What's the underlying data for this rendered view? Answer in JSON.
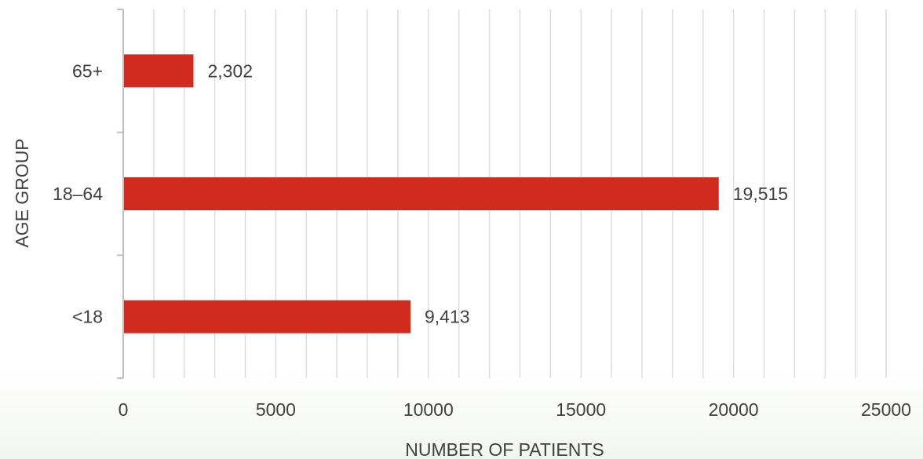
{
  "chart_data": {
    "type": "bar",
    "orientation": "horizontal",
    "categories": [
      "<18",
      "18–64",
      "65+"
    ],
    "values": [
      9413,
      19515,
      2302
    ],
    "data_labels": [
      "9,413",
      "19,515",
      "2,302"
    ],
    "xlabel": "NUMBER OF PATIENTS",
    "ylabel": "AGE GROUP",
    "xlim": [
      0,
      25000
    ],
    "x_ticks": [
      0,
      5000,
      10000,
      15000,
      20000,
      25000
    ],
    "x_tick_labels": [
      "0",
      "5000",
      "10000",
      "15000",
      "20000",
      "25000"
    ],
    "minor_gridline_step": 1000,
    "grid": true,
    "legend": "none",
    "bar_color": "#d12a1e",
    "gridline_color": "#dcdcdc",
    "axis_color": "#bfbfbf",
    "text_color": "#404040"
  }
}
